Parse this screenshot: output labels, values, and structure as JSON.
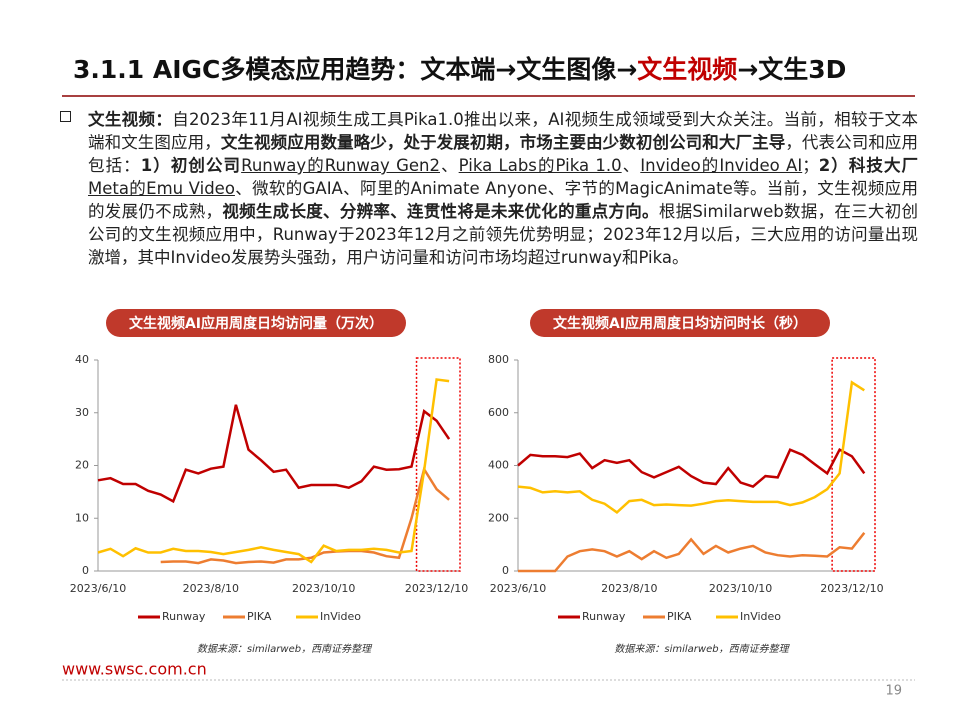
{
  "header": {
    "title_parts": [
      {
        "text": "3.1.1 AIGC多模态应用趋势：文本端→文生图像→",
        "color": "#111111"
      },
      {
        "text": "文生视频",
        "color": "#c00000"
      },
      {
        "text": "→文生3D",
        "color": "#111111"
      }
    ]
  },
  "paragraph": {
    "runs": [
      {
        "text": "文生视频：",
        "style": "bold"
      },
      {
        "text": "自2023年11月AI视频生成工具Pika1.0推出以来，AI视频生成领域受到大众关注。当前，相较于文本端和文生图应用，",
        "style": "normal"
      },
      {
        "text": "文生视频应用数量略少，处于发展初期，市场主要由少数初创公司和大厂主导",
        "style": "bold"
      },
      {
        "text": "，代表公司和应用包括：",
        "style": "normal"
      },
      {
        "text": "1）初创公司",
        "style": "bold"
      },
      {
        "text": "Runway的Runway Gen2",
        "style": "underline"
      },
      {
        "text": "、",
        "style": "normal"
      },
      {
        "text": "Pika Labs的Pika 1.0",
        "style": "underline"
      },
      {
        "text": "、",
        "style": "normal"
      },
      {
        "text": "Invideo的Invideo AI",
        "style": "underline"
      },
      {
        "text": "；",
        "style": "normal"
      },
      {
        "text": "2）科技大厂",
        "style": "bold"
      },
      {
        "text": "Meta的Emu Video",
        "style": "underline"
      },
      {
        "text": "、微软的GAIA、阿里的Animate Anyone、字节的MagicAnimate等。当前，文生视频应用的发展仍不成熟，",
        "style": "normal"
      },
      {
        "text": "视频生成长度、分辨率、连贯性将是未来优化的重点方向。",
        "style": "bold"
      },
      {
        "text": "根据Similarweb数据，在三大初创公司的文生视频应用中，Runway于2023年12月之前领先优势明显；2023年12月以后，三大应用的访问量出现激增，其中Invideo发展势头强劲，用户访问量和访问市场均超过runway和Pika。",
        "style": "normal"
      }
    ]
  },
  "chart_data": [
    {
      "type": "line",
      "title": "文生视频AI应用周度日均访问量（万次）",
      "categories": [
        "2023/6/10",
        null,
        null,
        null,
        null,
        null,
        null,
        null,
        null,
        "2023/8/10",
        null,
        null,
        null,
        null,
        null,
        null,
        null,
        null,
        "2023/10/10",
        null,
        null,
        null,
        null,
        null,
        null,
        null,
        null,
        "2023/12/10",
        null
      ],
      "series": [
        {
          "name": "Runway",
          "color": "#c00000",
          "values": [
            17.2,
            17.6,
            16.5,
            16.5,
            15.2,
            14.5,
            13.2,
            19.2,
            18.5,
            19.4,
            19.8,
            31.5,
            23,
            21,
            18.8,
            19.2,
            15.8,
            16.3,
            16.3,
            16.3,
            15.8,
            17,
            19.8,
            19.2,
            19.3,
            19.8,
            30.3,
            28.5,
            25
          ]
        },
        {
          "name": "PIKA",
          "color": "#ed7d31",
          "values": [
            null,
            null,
            null,
            null,
            null,
            1.7,
            1.8,
            1.8,
            1.5,
            2.2,
            2.0,
            1.5,
            1.7,
            1.8,
            1.6,
            2.2,
            2.2,
            2.5,
            3.5,
            3.7,
            3.8,
            3.8,
            3.5,
            2.8,
            2.5,
            10,
            19.3,
            15.5,
            13.5
          ]
        },
        {
          "name": "InVideo",
          "color": "#ffc000",
          "values": [
            3.5,
            4.2,
            2.8,
            4.3,
            3.5,
            3.5,
            4.2,
            3.8,
            3.8,
            3.6,
            3.2,
            3.6,
            4.0,
            4.5,
            4.0,
            3.6,
            3.2,
            1.7,
            4.8,
            3.8,
            4.0,
            4.0,
            4.2,
            4.0,
            3.5,
            3.8,
            19,
            36.3,
            36.0
          ]
        }
      ],
      "ylim": [
        0,
        40
      ],
      "yticks": [
        0,
        10,
        20,
        30,
        40
      ],
      "grid": false,
      "legend": "bottom",
      "source": "数据来源：similarweb，西南证券整理"
    },
    {
      "type": "line",
      "title": "文生视频AI应用周度日均访问时长（秒）",
      "categories": [
        "2023/6/10",
        null,
        null,
        null,
        null,
        null,
        null,
        null,
        null,
        "2023/8/10",
        null,
        null,
        null,
        null,
        null,
        null,
        null,
        null,
        "2023/10/10",
        null,
        null,
        null,
        null,
        null,
        null,
        null,
        null,
        "2023/12/10",
        null
      ],
      "series": [
        {
          "name": "Runway",
          "color": "#c00000",
          "values": [
            400,
            440,
            435,
            435,
            432,
            445,
            390,
            420,
            410,
            420,
            375,
            355,
            375,
            395,
            360,
            335,
            330,
            390,
            335,
            320,
            360,
            355,
            460,
            440,
            405,
            370,
            460,
            435,
            370
          ]
        },
        {
          "name": "PIKA",
          "color": "#ed7d31",
          "values": [
            0,
            0,
            0,
            0,
            55,
            75,
            82,
            75,
            55,
            75,
            45,
            75,
            50,
            65,
            120,
            65,
            95,
            70,
            85,
            95,
            70,
            60,
            55,
            60,
            58,
            55,
            90,
            85,
            145
          ]
        },
        {
          "name": "InVideo",
          "color": "#ffc000",
          "values": [
            320,
            315,
            298,
            302,
            298,
            302,
            270,
            255,
            222,
            265,
            270,
            250,
            252,
            250,
            248,
            255,
            265,
            268,
            265,
            262,
            262,
            262,
            250,
            260,
            280,
            310,
            370,
            715,
            685
          ]
        }
      ],
      "ylim": [
        0,
        800
      ],
      "yticks": [
        0,
        200,
        400,
        600,
        800
      ],
      "grid": false,
      "legend": "bottom",
      "source": "数据来源：similarweb，西南证券整理"
    }
  ],
  "footer": {
    "url": "www.swsc.com.cn",
    "page": "19"
  }
}
